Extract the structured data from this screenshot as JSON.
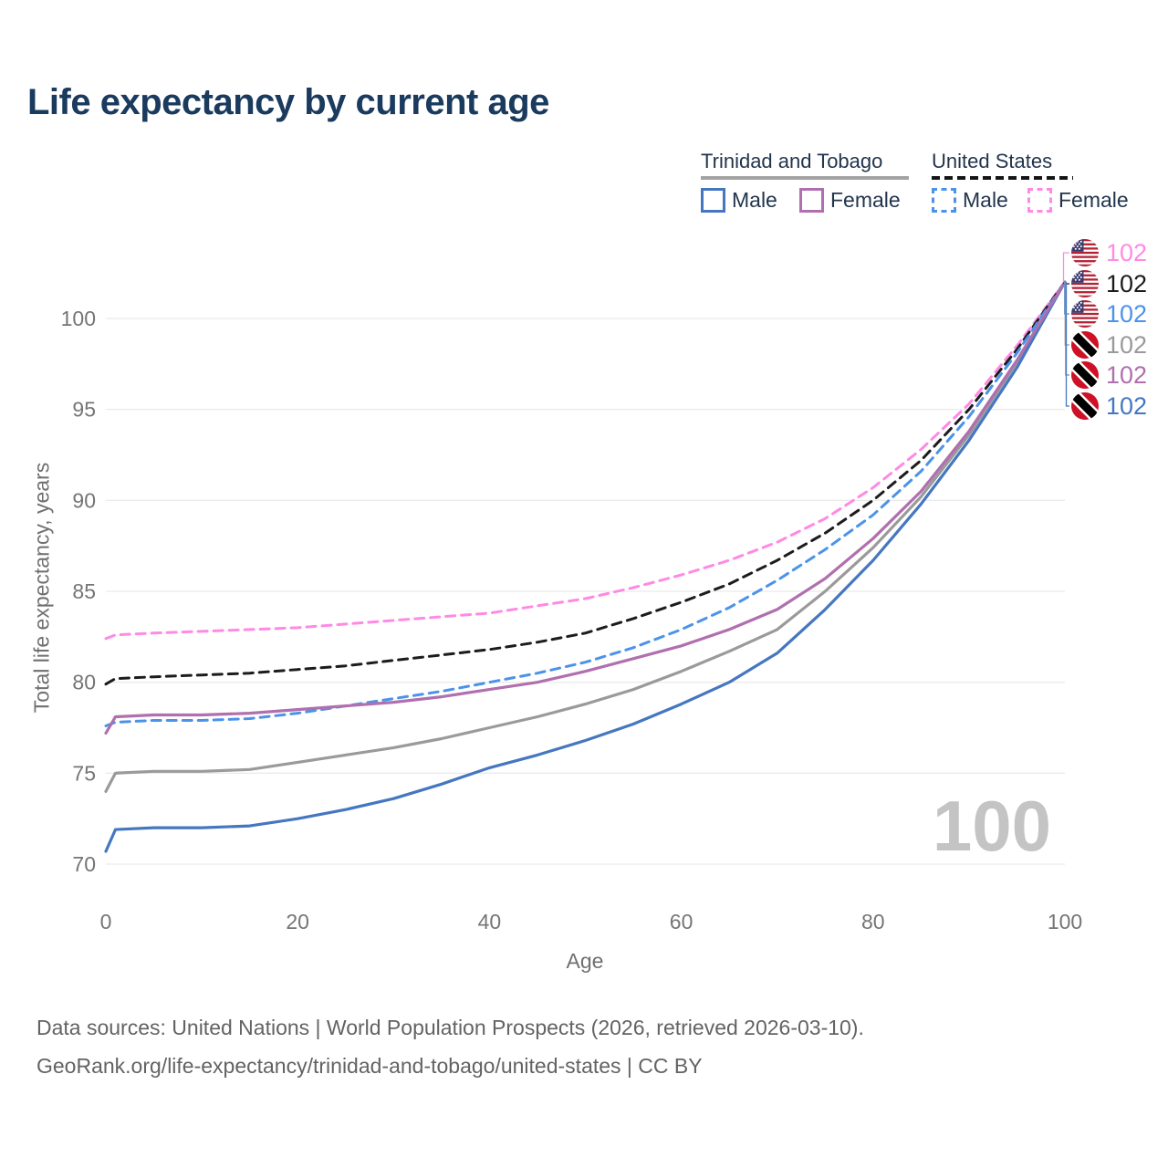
{
  "title": "Life expectancy by current age",
  "legend": {
    "groups": [
      {
        "label": "Trinidad and Tobago",
        "line_style": "solid",
        "line_color": "#a3a3a3",
        "items": [
          {
            "label": "Male",
            "color": "#4577c0",
            "dashed": false
          },
          {
            "label": "Female",
            "color": "#b06fae",
            "dashed": false
          }
        ]
      },
      {
        "label": "United States",
        "line_style": "dashed",
        "line_color": "#151515",
        "items": [
          {
            "label": "Male",
            "color": "#4b93ea",
            "dashed": true
          },
          {
            "label": "Female",
            "color": "#ff8ae4",
            "dashed": true
          }
        ]
      }
    ]
  },
  "chart_data": {
    "type": "line",
    "title": "Life expectancy by current age",
    "xlabel": "Age",
    "ylabel": "Total life expectancy, years",
    "xlim": [
      0,
      100
    ],
    "ylim": [
      70,
      103
    ],
    "xticks": [
      0,
      20,
      40,
      60,
      80,
      100
    ],
    "yticks": [
      70,
      75,
      80,
      85,
      90,
      95,
      100
    ],
    "grid": true,
    "x": [
      0,
      1,
      5,
      10,
      15,
      20,
      25,
      30,
      35,
      40,
      45,
      50,
      55,
      60,
      65,
      70,
      75,
      80,
      85,
      90,
      95,
      100
    ],
    "series": [
      {
        "name": "Trinidad and Tobago All",
        "country": "Trinidad and Tobago",
        "sex": "All",
        "color": "#9a9a9a",
        "dashed": false,
        "values": [
          74.0,
          75.0,
          75.1,
          75.1,
          75.2,
          75.6,
          76.0,
          76.4,
          76.9,
          77.5,
          78.1,
          78.8,
          79.6,
          80.6,
          81.7,
          82.9,
          85.0,
          87.4,
          90.2,
          93.6,
          97.6,
          102
        ]
      },
      {
        "name": "Trinidad and Tobago Male",
        "country": "Trinidad and Tobago",
        "sex": "Male",
        "color": "#4577c0",
        "dashed": false,
        "values": [
          70.7,
          71.9,
          72.0,
          72.0,
          72.1,
          72.5,
          73.0,
          73.6,
          74.4,
          75.3,
          76.0,
          76.8,
          77.7,
          78.8,
          80.0,
          81.6,
          84.0,
          86.7,
          89.8,
          93.3,
          97.3,
          102
        ]
      },
      {
        "name": "United States Female",
        "country": "United States",
        "sex": "Female",
        "color": "#ff8ae4",
        "dashed": true,
        "values": [
          82.4,
          82.6,
          82.7,
          82.8,
          82.9,
          83.0,
          83.2,
          83.4,
          83.6,
          83.8,
          84.2,
          84.6,
          85.2,
          85.9,
          86.7,
          87.7,
          89.0,
          90.7,
          92.8,
          95.3,
          98.5,
          102
        ]
      },
      {
        "name": "United States All",
        "country": "United States",
        "sex": "All",
        "color": "#1c1c1c",
        "dashed": true,
        "values": [
          79.9,
          80.2,
          80.3,
          80.4,
          80.5,
          80.7,
          80.9,
          81.2,
          81.5,
          81.8,
          82.2,
          82.7,
          83.5,
          84.4,
          85.4,
          86.7,
          88.2,
          90.0,
          92.2,
          95.0,
          98.3,
          102
        ]
      },
      {
        "name": "United States Male",
        "country": "United States",
        "sex": "Male",
        "color": "#4b93ea",
        "dashed": true,
        "values": [
          77.6,
          77.8,
          77.9,
          77.9,
          78.0,
          78.3,
          78.7,
          79.1,
          79.5,
          80.0,
          80.5,
          81.1,
          81.9,
          82.9,
          84.1,
          85.6,
          87.3,
          89.2,
          91.6,
          94.6,
          98.1,
          102
        ]
      },
      {
        "name": "Trinidad and Tobago Female",
        "country": "Trinidad and Tobago",
        "sex": "Female",
        "color": "#b06fae",
        "dashed": false,
        "values": [
          77.2,
          78.1,
          78.2,
          78.2,
          78.3,
          78.5,
          78.7,
          78.9,
          79.2,
          79.6,
          80.0,
          80.6,
          81.3,
          82.0,
          82.9,
          84.0,
          85.7,
          87.9,
          90.5,
          93.8,
          97.7,
          102
        ]
      }
    ],
    "end_labels": [
      {
        "series": "United States Female",
        "flag": "us",
        "color": "#ff8ae4",
        "value": "102"
      },
      {
        "series": "United States All",
        "flag": "us",
        "color": "#1c1c1c",
        "value": "102"
      },
      {
        "series": "United States Male",
        "flag": "us",
        "color": "#4b93ea",
        "value": "102"
      },
      {
        "series": "Trinidad and Tobago All",
        "flag": "tt",
        "color": "#9a9a9a",
        "value": "102"
      },
      {
        "series": "Trinidad and Tobago Female",
        "flag": "tt",
        "color": "#b06fae",
        "value": "102"
      },
      {
        "series": "Trinidad and Tobago Male",
        "flag": "tt",
        "color": "#4577c0",
        "value": "102"
      }
    ],
    "watermark": "100"
  },
  "footer": {
    "line1": "Data sources: United Nations | World Population Prospects (2026, retrieved 2026-03-10).",
    "line2": "GeoRank.org/life-expectancy/trinidad-and-tobago/united-states | CC BY"
  }
}
